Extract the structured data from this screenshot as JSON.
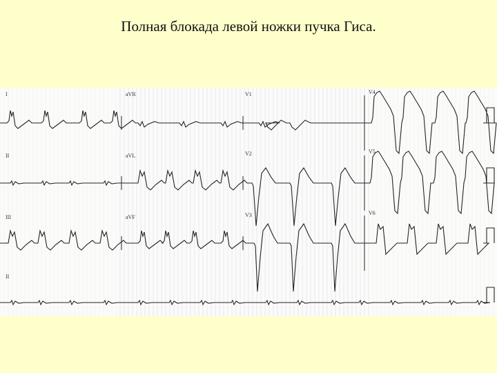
{
  "slide": {
    "title": "Полная блокада левой ножки пучка Гиса."
  },
  "ecg": {
    "leads": [
      [
        "I",
        "aVR",
        "V1",
        "V4"
      ],
      [
        "II",
        "aVL",
        "V2",
        "V5"
      ],
      [
        "III",
        "aVF",
        "V3",
        "V6"
      ],
      [
        "II",
        "",
        "",
        ""
      ]
    ],
    "paper_color": "#fbfbfa",
    "trace_color": "#222222"
  }
}
